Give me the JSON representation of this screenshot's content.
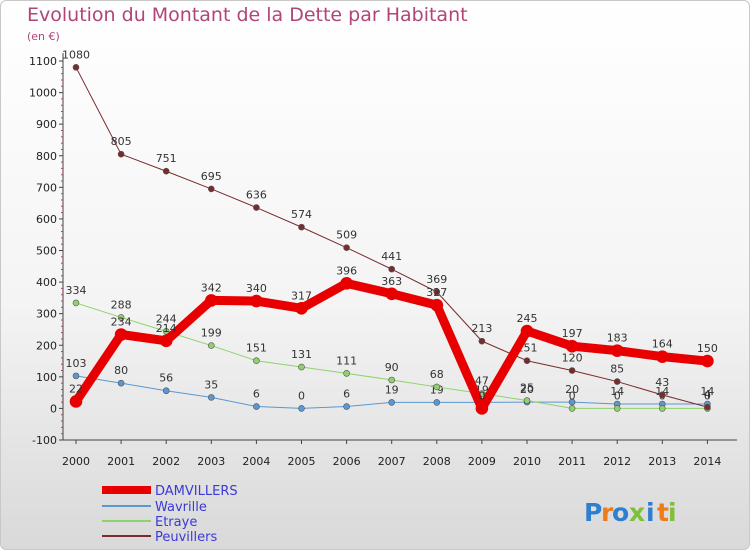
{
  "chart_data": {
    "type": "line",
    "title": "Evolution du Montant de la Dette par Habitant",
    "subtitle": "(en €)",
    "x": [
      2000,
      2001,
      2002,
      2003,
      2004,
      2005,
      2006,
      2007,
      2008,
      2009,
      2010,
      2011,
      2012,
      2013,
      2014
    ],
    "ylim": [
      -100,
      1100
    ],
    "yticks": [
      -100,
      0,
      100,
      200,
      300,
      400,
      500,
      600,
      700,
      800,
      900,
      1000,
      1100
    ],
    "grid": false,
    "legend": "bottom-left",
    "series": [
      {
        "name": "DAMVILLERS",
        "color": "#e80000",
        "width": 9,
        "values": [
          22,
          234,
          214,
          342,
          340,
          317,
          396,
          363,
          327,
          0,
          245,
          197,
          183,
          164,
          150
        ],
        "labels": [
          "22",
          "234",
          "214",
          "342",
          "340",
          "317",
          "396",
          "363",
          "327",
          "0",
          "245",
          "197",
          "183",
          "164",
          "150"
        ]
      },
      {
        "name": "Wavrille",
        "color": "#5b97d1",
        "width": 1,
        "values": [
          103,
          80,
          56,
          35,
          6,
          0,
          6,
          19,
          19,
          19,
          20,
          20,
          14,
          14,
          14
        ],
        "labels": [
          "103",
          "80",
          "56",
          "35",
          "6",
          "0",
          "6",
          "19",
          "19",
          "19",
          "20",
          "20",
          "14",
          "14",
          "14"
        ]
      },
      {
        "name": "Etraye",
        "color": "#8fd16b",
        "width": 1,
        "values": [
          334,
          288,
          244,
          199,
          151,
          131,
          111,
          90,
          68,
          47,
          25,
          0,
          0,
          0,
          0
        ],
        "labels": [
          "334",
          "288",
          "244",
          "199",
          "151",
          "131",
          "111",
          "90",
          "68",
          "47",
          "25",
          "0",
          "0",
          "0",
          "0"
        ]
      },
      {
        "name": "Peuvillers",
        "color": "#7a2b2b",
        "width": 1,
        "values": [
          1080,
          805,
          751,
          695,
          636,
          574,
          509,
          441,
          369,
          213,
          151,
          120,
          85,
          43,
          4
        ],
        "labels": [
          "1080",
          "805",
          "751",
          "695",
          "636",
          "574",
          "509",
          "441",
          "369",
          "213",
          "151",
          "120",
          "85",
          "43",
          "4"
        ]
      }
    ]
  },
  "brand": {
    "text": "Proxiti",
    "letters": [
      "P",
      "r",
      "o",
      "x",
      "i",
      "t",
      "i"
    ],
    "colors": [
      "#2f7fd0",
      "#f07b19",
      "#2f7fd0",
      "#7fbf3a",
      "#2f7fd0",
      "#f07b19",
      "#7fbf3a"
    ]
  }
}
